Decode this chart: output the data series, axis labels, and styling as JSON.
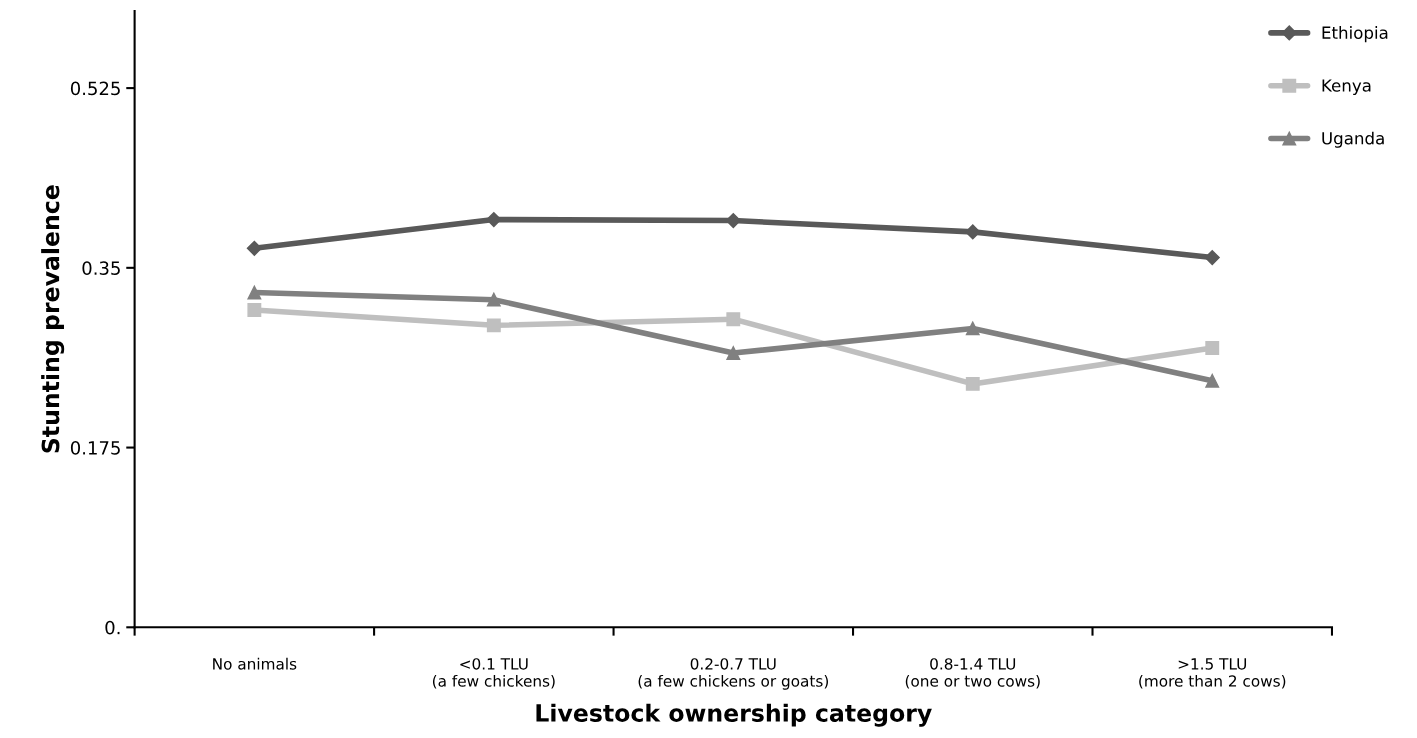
{
  "chart_data": {
    "type": "line",
    "xlabel": "Livestock ownership category",
    "ylabel": "Stunting prevalence",
    "categories": [
      "No animals",
      "<0.1 TLU\n(a few chickens)",
      "0.2-0.7 TLU\n(a few chickens or goats)",
      "0.8-1.4 TLU\n(one or two cows)",
      ">1.5 TLU\n(more than 2 cows)"
    ],
    "series": [
      {
        "name": "Ethiopia",
        "color": "#595959",
        "marker": "diamond",
        "values": [
          0.369,
          0.397,
          0.396,
          0.385,
          0.36
        ]
      },
      {
        "name": "Kenya",
        "color": "#bfbfbf",
        "marker": "square",
        "values": [
          0.309,
          0.294,
          0.3,
          0.237,
          0.272
        ]
      },
      {
        "name": "Uganda",
        "color": "#808080",
        "marker": "triangle",
        "values": [
          0.326,
          0.319,
          0.267,
          0.291,
          0.24
        ]
      }
    ],
    "ylim": [
      0,
      0.6
    ],
    "yticks": [
      {
        "value": 0,
        "label": "0."
      },
      0.175,
      0.35,
      0.525
    ],
    "grid": false,
    "legend": "top right",
    "line_style": "solid"
  }
}
